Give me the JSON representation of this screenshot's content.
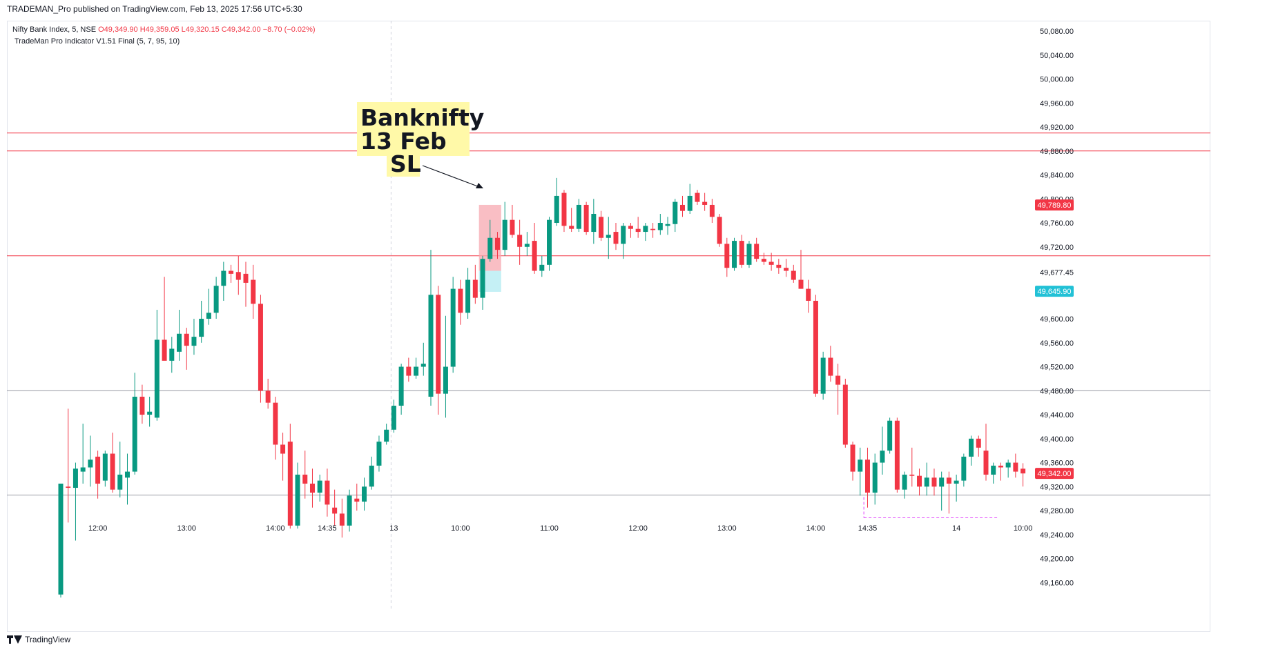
{
  "header": {
    "published_line": "TRADEMAN_Pro published on TradingView.com, Feb 13, 2025 17:56 UTC+5:30"
  },
  "legend": {
    "symbol": "Nifty Bank Index, 5, NSE",
    "open": "O49,349.90",
    "high": "H49,359.05",
    "low": "L49,320.15",
    "close": "C49,342.00",
    "change": "−8.70 (−0.02%)",
    "indicator": "TradeMan Pro Indicator V1.51 Final (5, 7, 95, 10)"
  },
  "annotation": {
    "lines": [
      "Banknifty",
      "13 Feb",
      "SL"
    ]
  },
  "footer": {
    "brand": "TradingView"
  },
  "colors": {
    "up": "#089981",
    "down": "#f23645",
    "level_line": "#f23645",
    "grey_line": "#9598a1",
    "highlight": "#fff9a8",
    "sl_box": "#f7a8b0",
    "target_box": "#b2ebf2",
    "cyan_badge": "#22c1d6"
  },
  "chart_data": {
    "type": "candlestick",
    "title": "Nifty Bank Index, 5, NSE",
    "ylim": [
      49120,
      50100
    ],
    "y_ticks": [
      49160,
      49200,
      49240,
      49280,
      49320,
      49360,
      49400,
      49440,
      49480,
      49520,
      49560,
      49600,
      49677.45,
      49720,
      49760,
      49800,
      49840,
      49880,
      49920,
      49960,
      50000,
      50040,
      50080
    ],
    "y_tick_labels": [
      "49,160.00",
      "49,200.00",
      "49,240.00",
      "49,280.00",
      "49,320.00",
      "49,360.00",
      "49,400.00",
      "49,440.00",
      "49,480.00",
      "49,520.00",
      "49,560.00",
      "49,600.00",
      "49,677.45",
      "49,720.00",
      "49,760.00",
      "49,800.00",
      "49,840.00",
      "49,880.00",
      "49,920.00",
      "49,960.00",
      "50,000.00",
      "50,040.00",
      "50,080.00"
    ],
    "x_ticks": [
      {
        "label": "12:00",
        "bar": 5
      },
      {
        "label": "13:00",
        "bar": 17
      },
      {
        "label": "14:00",
        "bar": 29
      },
      {
        "label": "14:35",
        "bar": 36
      },
      {
        "label": "13",
        "bar": 45
      },
      {
        "label": "10:00",
        "bar": 54
      },
      {
        "label": "11:00",
        "bar": 66
      },
      {
        "label": "12:00",
        "bar": 78
      },
      {
        "label": "13:00",
        "bar": 90
      },
      {
        "label": "14:00",
        "bar": 102
      },
      {
        "label": "14:35",
        "bar": 109
      },
      {
        "label": "14",
        "bar": 121
      },
      {
        "label": "10:00",
        "bar": 130
      }
    ],
    "session_break_bar": 45,
    "horizontal_levels": [
      {
        "price": 49910,
        "kind": "resistance"
      },
      {
        "price": 49880,
        "kind": "resistance"
      },
      {
        "price": 49705,
        "kind": "resistance"
      },
      {
        "price": 49480,
        "kind": "grey"
      },
      {
        "price": 49306,
        "kind": "grey"
      }
    ],
    "price_labels": [
      {
        "price": 49789.8,
        "text": "49,789.80",
        "kind": "red"
      },
      {
        "price": 49645.9,
        "text": "49,645.90",
        "kind": "cyan"
      },
      {
        "price": 49342.0,
        "text": "49,342.00",
        "kind": "red"
      }
    ],
    "trade_box": {
      "bar_start": 56.5,
      "bar_end": 59.5,
      "entry": 49680,
      "sl": 49790,
      "target": 49645
    },
    "target_dashed_line": {
      "bar_start": 108.5,
      "bar_end": 126.5,
      "price": 49268
    },
    "candles": [
      {
        "o": 49140,
        "h": 49325,
        "l": 49135,
        "c": 49325
      },
      {
        "o": 49320,
        "h": 49450,
        "l": 49260,
        "c": 49318
      },
      {
        "o": 49318,
        "h": 49360,
        "l": 49230,
        "c": 49350
      },
      {
        "o": 49345,
        "h": 49425,
        "l": 49325,
        "c": 49352
      },
      {
        "o": 49352,
        "h": 49405,
        "l": 49320,
        "c": 49365
      },
      {
        "o": 49370,
        "h": 49380,
        "l": 49300,
        "c": 49325
      },
      {
        "o": 49330,
        "h": 49380,
        "l": 49320,
        "c": 49375
      },
      {
        "o": 49375,
        "h": 49410,
        "l": 49310,
        "c": 49315
      },
      {
        "o": 49315,
        "h": 49395,
        "l": 49302,
        "c": 49340
      },
      {
        "o": 49335,
        "h": 49375,
        "l": 49290,
        "c": 49345
      },
      {
        "o": 49345,
        "h": 49510,
        "l": 49340,
        "c": 49470
      },
      {
        "o": 49470,
        "h": 49490,
        "l": 49425,
        "c": 49440
      },
      {
        "o": 49440,
        "h": 49470,
        "l": 49420,
        "c": 49445
      },
      {
        "o": 49435,
        "h": 49615,
        "l": 49430,
        "c": 49565
      },
      {
        "o": 49565,
        "h": 49670,
        "l": 49535,
        "c": 49530
      },
      {
        "o": 49530,
        "h": 49570,
        "l": 49510,
        "c": 49550
      },
      {
        "o": 49545,
        "h": 49615,
        "l": 49530,
        "c": 49575
      },
      {
        "o": 49575,
        "h": 49585,
        "l": 49515,
        "c": 49555
      },
      {
        "o": 49555,
        "h": 49600,
        "l": 49540,
        "c": 49570
      },
      {
        "o": 49570,
        "h": 49630,
        "l": 49560,
        "c": 49600
      },
      {
        "o": 49600,
        "h": 49650,
        "l": 49590,
        "c": 49610
      },
      {
        "o": 49610,
        "h": 49670,
        "l": 49600,
        "c": 49655
      },
      {
        "o": 49655,
        "h": 49695,
        "l": 49630,
        "c": 49680
      },
      {
        "o": 49680,
        "h": 49690,
        "l": 49660,
        "c": 49675
      },
      {
        "o": 49678,
        "h": 49705,
        "l": 49640,
        "c": 49665
      },
      {
        "o": 49675,
        "h": 49695,
        "l": 49620,
        "c": 49660
      },
      {
        "o": 49665,
        "h": 49690,
        "l": 49600,
        "c": 49625
      },
      {
        "o": 49625,
        "h": 49640,
        "l": 49460,
        "c": 49480
      },
      {
        "o": 49480,
        "h": 49500,
        "l": 49450,
        "c": 49460
      },
      {
        "o": 49460,
        "h": 49470,
        "l": 49365,
        "c": 49390
      },
      {
        "o": 49390,
        "h": 49410,
        "l": 49330,
        "c": 49375
      },
      {
        "o": 49395,
        "h": 49425,
        "l": 49250,
        "c": 49255
      },
      {
        "o": 49255,
        "h": 49360,
        "l": 49250,
        "c": 49340
      },
      {
        "o": 49340,
        "h": 49380,
        "l": 49300,
        "c": 49325
      },
      {
        "o": 49325,
        "h": 49350,
        "l": 49285,
        "c": 49310
      },
      {
        "o": 49310,
        "h": 49340,
        "l": 49295,
        "c": 49330
      },
      {
        "o": 49330,
        "h": 49350,
        "l": 49270,
        "c": 49290
      },
      {
        "o": 49285,
        "h": 49315,
        "l": 49255,
        "c": 49275
      },
      {
        "o": 49275,
        "h": 49300,
        "l": 49235,
        "c": 49255
      },
      {
        "o": 49255,
        "h": 49315,
        "l": 49245,
        "c": 49305
      },
      {
        "o": 49300,
        "h": 49325,
        "l": 49280,
        "c": 49295
      },
      {
        "o": 49295,
        "h": 49335,
        "l": 49280,
        "c": 49320
      },
      {
        "o": 49320,
        "h": 49370,
        "l": 49315,
        "c": 49355
      },
      {
        "o": 49355,
        "h": 49405,
        "l": 49345,
        "c": 49395
      },
      {
        "o": 49395,
        "h": 49425,
        "l": 49390,
        "c": 49415
      },
      {
        "o": 49415,
        "h": 49465,
        "l": 49410,
        "c": 49455
      },
      {
        "o": 49455,
        "h": 49525,
        "l": 49440,
        "c": 49520
      },
      {
        "o": 49520,
        "h": 49535,
        "l": 49495,
        "c": 49505
      },
      {
        "o": 49505,
        "h": 49535,
        "l": 49500,
        "c": 49520
      },
      {
        "o": 49520,
        "h": 49560,
        "l": 49505,
        "c": 49525
      },
      {
        "o": 49470,
        "h": 49715,
        "l": 49455,
        "c": 49640
      },
      {
        "o": 49640,
        "h": 49655,
        "l": 49440,
        "c": 49475
      },
      {
        "o": 49475,
        "h": 49605,
        "l": 49435,
        "c": 49520
      },
      {
        "o": 49520,
        "h": 49670,
        "l": 49510,
        "c": 49650
      },
      {
        "o": 49650,
        "h": 49665,
        "l": 49590,
        "c": 49610
      },
      {
        "o": 49610,
        "h": 49685,
        "l": 49600,
        "c": 49665
      },
      {
        "o": 49665,
        "h": 49690,
        "l": 49625,
        "c": 49635
      },
      {
        "o": 49635,
        "h": 49705,
        "l": 49615,
        "c": 49700
      },
      {
        "o": 49700,
        "h": 49765,
        "l": 49695,
        "c": 49735
      },
      {
        "o": 49735,
        "h": 49745,
        "l": 49700,
        "c": 49715
      },
      {
        "o": 49715,
        "h": 49795,
        "l": 49705,
        "c": 49765
      },
      {
        "o": 49765,
        "h": 49790,
        "l": 49735,
        "c": 49740
      },
      {
        "o": 49740,
        "h": 49765,
        "l": 49690,
        "c": 49720
      },
      {
        "o": 49720,
        "h": 49745,
        "l": 49705,
        "c": 49725
      },
      {
        "o": 49730,
        "h": 49760,
        "l": 49675,
        "c": 49680
      },
      {
        "o": 49680,
        "h": 49705,
        "l": 49670,
        "c": 49690
      },
      {
        "o": 49690,
        "h": 49770,
        "l": 49680,
        "c": 49765
      },
      {
        "o": 49760,
        "h": 49835,
        "l": 49755,
        "c": 49805
      },
      {
        "o": 49810,
        "h": 49815,
        "l": 49745,
        "c": 49755
      },
      {
        "o": 49755,
        "h": 49785,
        "l": 49745,
        "c": 49750
      },
      {
        "o": 49750,
        "h": 49800,
        "l": 49745,
        "c": 49790
      },
      {
        "o": 49790,
        "h": 49795,
        "l": 49740,
        "c": 49745
      },
      {
        "o": 49745,
        "h": 49800,
        "l": 49725,
        "c": 49775
      },
      {
        "o": 49770,
        "h": 49780,
        "l": 49730,
        "c": 49735
      },
      {
        "o": 49735,
        "h": 49770,
        "l": 49700,
        "c": 49740
      },
      {
        "o": 49745,
        "h": 49760,
        "l": 49715,
        "c": 49725
      },
      {
        "o": 49725,
        "h": 49760,
        "l": 49700,
        "c": 49755
      },
      {
        "o": 49755,
        "h": 49760,
        "l": 49735,
        "c": 49750
      },
      {
        "o": 49750,
        "h": 49770,
        "l": 49735,
        "c": 49745
      },
      {
        "o": 49745,
        "h": 49760,
        "l": 49730,
        "c": 49755
      },
      {
        "o": 49750,
        "h": 49760,
        "l": 49735,
        "c": 49748
      },
      {
        "o": 49748,
        "h": 49775,
        "l": 49740,
        "c": 49760
      },
      {
        "o": 49755,
        "h": 49770,
        "l": 49740,
        "c": 49758
      },
      {
        "o": 49758,
        "h": 49800,
        "l": 49745,
        "c": 49795
      },
      {
        "o": 49790,
        "h": 49805,
        "l": 49770,
        "c": 49780
      },
      {
        "o": 49780,
        "h": 49825,
        "l": 49775,
        "c": 49805
      },
      {
        "o": 49810,
        "h": 49815,
        "l": 49790,
        "c": 49795
      },
      {
        "o": 49795,
        "h": 49810,
        "l": 49780,
        "c": 49790
      },
      {
        "o": 49790,
        "h": 49800,
        "l": 49760,
        "c": 49770
      },
      {
        "o": 49770,
        "h": 49775,
        "l": 49720,
        "c": 49725
      },
      {
        "o": 49725,
        "h": 49735,
        "l": 49670,
        "c": 49685
      },
      {
        "o": 49685,
        "h": 49735,
        "l": 49680,
        "c": 49730
      },
      {
        "o": 49730,
        "h": 49740,
        "l": 49685,
        "c": 49690
      },
      {
        "o": 49690,
        "h": 49730,
        "l": 49685,
        "c": 49725
      },
      {
        "o": 49725,
        "h": 49735,
        "l": 49695,
        "c": 49700
      },
      {
        "o": 49700,
        "h": 49710,
        "l": 49690,
        "c": 49695
      },
      {
        "o": 49695,
        "h": 49710,
        "l": 49680,
        "c": 49690
      },
      {
        "o": 49690,
        "h": 49700,
        "l": 49675,
        "c": 49685
      },
      {
        "o": 49685,
        "h": 49700,
        "l": 49670,
        "c": 49680
      },
      {
        "o": 49680,
        "h": 49690,
        "l": 49660,
        "c": 49665
      },
      {
        "o": 49665,
        "h": 49715,
        "l": 49650,
        "c": 49650
      },
      {
        "o": 49650,
        "h": 49665,
        "l": 49610,
        "c": 49630
      },
      {
        "o": 49630,
        "h": 49640,
        "l": 49470,
        "c": 49475
      },
      {
        "o": 49475,
        "h": 49545,
        "l": 49465,
        "c": 49535
      },
      {
        "o": 49535,
        "h": 49555,
        "l": 49495,
        "c": 49505
      },
      {
        "o": 49505,
        "h": 49525,
        "l": 49440,
        "c": 49490
      },
      {
        "o": 49490,
        "h": 49500,
        "l": 49385,
        "c": 49390
      },
      {
        "o": 49390,
        "h": 49395,
        "l": 49330,
        "c": 49345
      },
      {
        "o": 49345,
        "h": 49385,
        "l": 49305,
        "c": 49365
      },
      {
        "o": 49365,
        "h": 49385,
        "l": 49285,
        "c": 49310
      },
      {
        "o": 49310,
        "h": 49375,
        "l": 49290,
        "c": 49360
      },
      {
        "o": 49360,
        "h": 49420,
        "l": 49340,
        "c": 49380
      },
      {
        "o": 49380,
        "h": 49435,
        "l": 49375,
        "c": 49430
      },
      {
        "o": 49430,
        "h": 49435,
        "l": 49310,
        "c": 49315
      },
      {
        "o": 49315,
        "h": 49345,
        "l": 49300,
        "c": 49340
      },
      {
        "o": 49340,
        "h": 49385,
        "l": 49320,
        "c": 49338
      },
      {
        "o": 49338,
        "h": 49350,
        "l": 49305,
        "c": 49320
      },
      {
        "o": 49320,
        "h": 49360,
        "l": 49305,
        "c": 49335
      },
      {
        "o": 49335,
        "h": 49350,
        "l": 49305,
        "c": 49320
      },
      {
        "o": 49320,
        "h": 49345,
        "l": 49280,
        "c": 49335
      },
      {
        "o": 49335,
        "h": 49345,
        "l": 49275,
        "c": 49325
      },
      {
        "o": 49325,
        "h": 49340,
        "l": 49295,
        "c": 49330
      },
      {
        "o": 49330,
        "h": 49375,
        "l": 49320,
        "c": 49370
      },
      {
        "o": 49370,
        "h": 49405,
        "l": 49355,
        "c": 49400
      },
      {
        "o": 49400,
        "h": 49405,
        "l": 49370,
        "c": 49385
      },
      {
        "o": 49380,
        "h": 49425,
        "l": 49330,
        "c": 49340
      },
      {
        "o": 49340,
        "h": 49360,
        "l": 49325,
        "c": 49355
      },
      {
        "o": 49355,
        "h": 49360,
        "l": 49330,
        "c": 49352
      },
      {
        "o": 49352,
        "h": 49365,
        "l": 49335,
        "c": 49360
      },
      {
        "o": 49360,
        "h": 49375,
        "l": 49335,
        "c": 49345
      },
      {
        "o": 49349.9,
        "h": 49359.05,
        "l": 49320.15,
        "c": 49342
      }
    ]
  }
}
